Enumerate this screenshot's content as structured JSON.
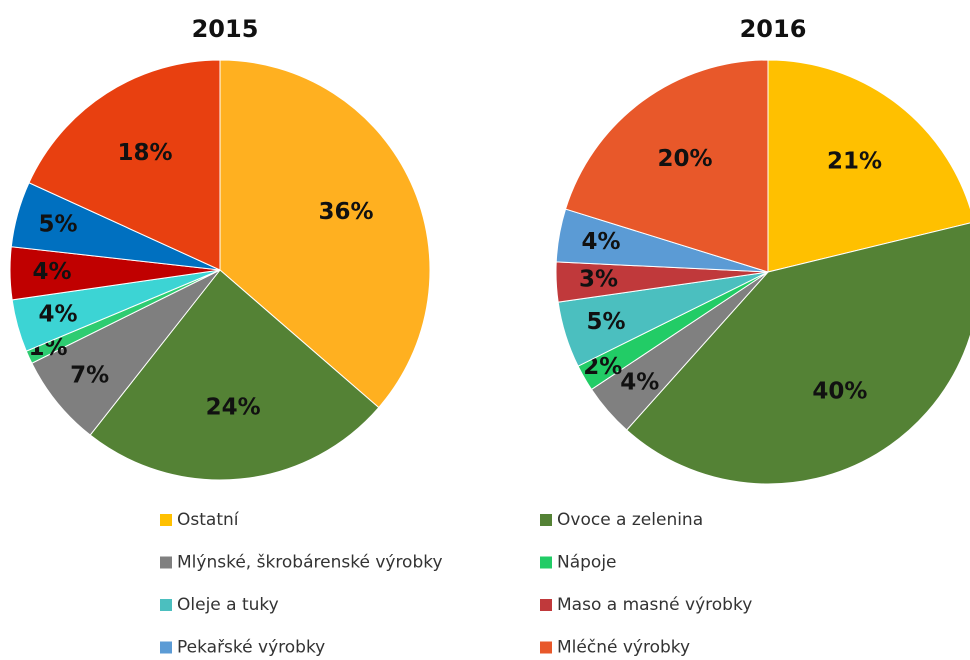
{
  "chart_data": [
    {
      "type": "pie",
      "title": "2015",
      "categories": [
        "Ostatní",
        "Ovoce a zelenina",
        "Mlýnské, škrobárenské výrobky",
        "Nápoje",
        "Oleje a tuky",
        "Maso a masné výrobky",
        "Pekařské výrobky",
        "Mléčné výrobky"
      ],
      "values": [
        36,
        24,
        7,
        1,
        4,
        4,
        5,
        18
      ],
      "value_labels": [
        "36%",
        "24%",
        "7%",
        "1%",
        "4%",
        "4%",
        "5%",
        "18%"
      ],
      "colors": [
        "#ffb020",
        "#548235",
        "#7f7f7f",
        "#2ecc71",
        "#3cd4d4",
        "#c00000",
        "#0070c0",
        "#e84010"
      ]
    },
    {
      "type": "pie",
      "title": "2016",
      "categories": [
        "Ostatní",
        "Ovoce a zelenina",
        "Mlýnské, škrobárenské výrobky",
        "Nápoje",
        "Oleje a tuky",
        "Maso a masné výrobky",
        "Pekařské výrobky",
        "Mléčné výrobky"
      ],
      "values": [
        21,
        40,
        4,
        2,
        5,
        3,
        4,
        20
      ],
      "value_labels": [
        "21%",
        "40%",
        "4%",
        "2%",
        "5%",
        "3%",
        "4%",
        "20%"
      ],
      "colors": [
        "#ffc000",
        "#548235",
        "#808080",
        "#22cc66",
        "#4bbfbf",
        "#c0393b",
        "#5b9bd5",
        "#e8582a"
      ]
    }
  ]
}
